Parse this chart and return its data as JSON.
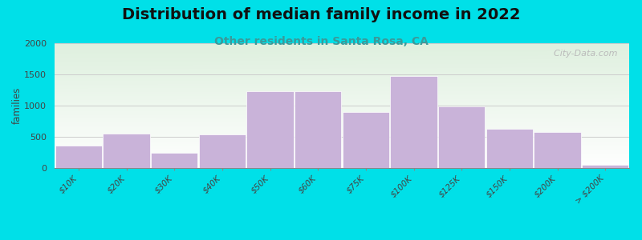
{
  "title": "Distribution of median family income in 2022",
  "subtitle": "Other residents in Santa Rosa, CA",
  "categories": [
    "$10K",
    "$20K",
    "$30K",
    "$40K",
    "$50K",
    "$60K",
    "$75K",
    "$100K",
    "$125K",
    "$150K",
    "$200K",
    "> $200K"
  ],
  "values": [
    360,
    550,
    240,
    540,
    1230,
    1230,
    900,
    1480,
    990,
    630,
    580,
    50
  ],
  "bar_color": "#c9b3d9",
  "bar_edge_color": "#ffffff",
  "ylabel": "families",
  "ylim": [
    0,
    2000
  ],
  "yticks": [
    0,
    500,
    1000,
    1500,
    2000
  ],
  "background_outer": "#00e0e8",
  "bg_color_top_left": "#ddeedd",
  "bg_color_top_right": "#eef5ee",
  "bg_color_bottom": "#ffffff",
  "title_fontsize": 14,
  "subtitle_fontsize": 10,
  "subtitle_color": "#3a9a9a",
  "watermark": "  City-Data.com",
  "watermark_icon": "●",
  "grid_color": "#cccccc",
  "tick_label_color": "#444444"
}
